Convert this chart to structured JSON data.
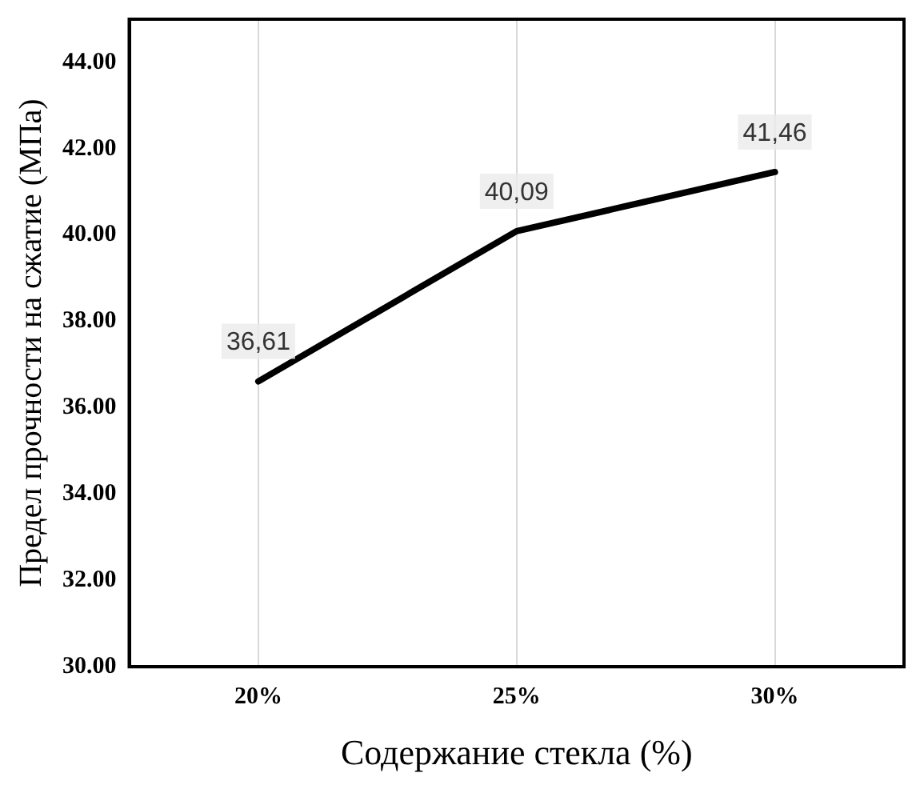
{
  "chart_data": {
    "type": "line",
    "xlabel": "Содержание стекла (%)",
    "ylabel": "Предел прочности на сжатие (МПа)",
    "categories": [
      "20%",
      "25%",
      "30%"
    ],
    "series": [
      {
        "color": "#000000",
        "values": [
          36.61,
          40.09,
          41.46
        ],
        "value_labels": [
          "36,61",
          "40,09",
          "41,46"
        ]
      }
    ],
    "ylim": [
      30,
      45
    ],
    "yticks": [
      {
        "value": 30,
        "label": "30.00"
      },
      {
        "value": 32,
        "label": "32.00"
      },
      {
        "value": 34,
        "label": "34.00"
      },
      {
        "value": 36,
        "label": "36.00"
      },
      {
        "value": 38,
        "label": "38.00"
      },
      {
        "value": 40,
        "label": "40.00"
      },
      {
        "value": 42,
        "label": "42.00"
      },
      {
        "value": 44,
        "label": "44.00"
      }
    ],
    "grid": "x",
    "legend": false,
    "marker": "none",
    "line_style": "solid"
  }
}
